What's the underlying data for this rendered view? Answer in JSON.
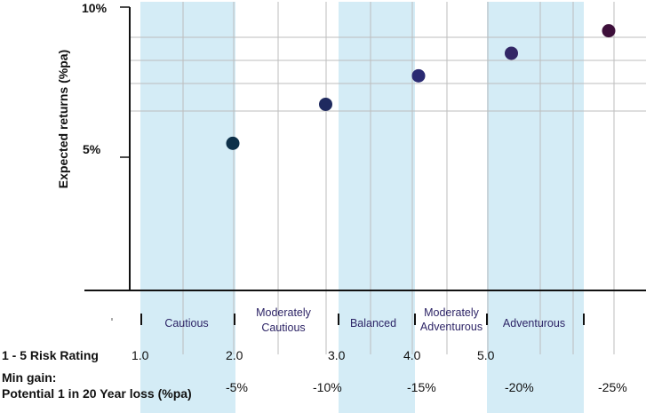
{
  "chart_data": {
    "type": "scatter",
    "ylabel": "Expected returns (%pa)",
    "ylim": [
      0,
      10
    ],
    "y_tick_labels": [
      "10%",
      "5%"
    ],
    "colors": {
      "band": "#d4ecf6",
      "grid": "#bdbdbd",
      "axis": "#111111",
      "text": "#111111",
      "band_text": "#2d2466"
    },
    "bands": [
      {
        "label_lines": [
          "Cautious"
        ],
        "from": 1.0,
        "to": 2.0
      },
      {
        "label_lines": [
          "Moderately",
          "Cautious"
        ],
        "from": 2.0,
        "to": 3.0,
        "unshaded": true
      },
      {
        "label_lines": [
          "Balanced"
        ],
        "from": 3.0,
        "to": 4.0
      },
      {
        "label_lines": [
          "Moderately",
          "Adventurous"
        ],
        "from": 4.0,
        "to": 5.0,
        "unshaded": true
      },
      {
        "label_lines": [
          "Adventurous"
        ],
        "from": 5.0,
        "to": 6.0
      }
    ],
    "points": [
      {
        "x": 2.0,
        "y": 4.9,
        "color": "#0e3049"
      },
      {
        "x": 3.0,
        "y": 6.2,
        "color": "#1f2a5f"
      },
      {
        "x": 4.0,
        "y": 7.15,
        "color": "#2a2a72"
      },
      {
        "x": 5.0,
        "y": 7.9,
        "color": "#322766"
      },
      {
        "x": 6.0,
        "y": 8.65,
        "color": "#3d0f3a"
      }
    ],
    "risk_rating": {
      "label": "1 - 5 Risk Rating",
      "ticks": [
        "1.0",
        "2.0",
        "3.0",
        "4.0",
        "5.0"
      ]
    },
    "min_gain": {
      "label_line1": "Min gain:",
      "label_line2": "Potential 1 in 20 Year loss (%pa)",
      "ticks": [
        "-5%",
        "-10%",
        "-15%",
        "-20%",
        "-25%"
      ]
    }
  }
}
